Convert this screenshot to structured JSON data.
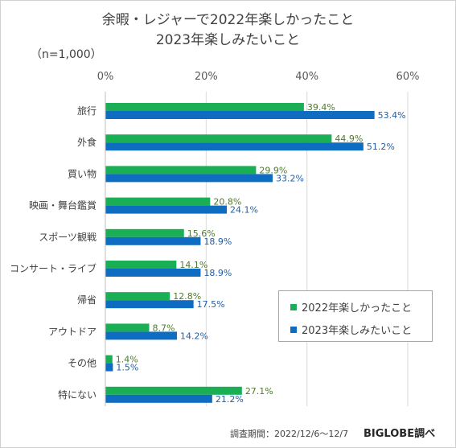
{
  "title": [
    "余暇・レジャーで2022年楽しかったこと",
    "2023年楽しみたいこと"
  ],
  "sample_size": "（n=1,000）",
  "footer": {
    "period": "調査期間：2022/12/6〜12/7",
    "brand": "BIGLOBE調べ"
  },
  "chart_data": {
    "type": "bar",
    "orientation": "horizontal",
    "categories": [
      "旅行",
      "外食",
      "買い物",
      "映画・舞台鑑賞",
      "スポーツ観戦",
      "コンサート・ライブ",
      "帰省",
      "アウトドア",
      "その他",
      "特にない"
    ],
    "series": [
      {
        "name": "2022年楽しかったこと",
        "color": "#1aaf54",
        "label_color": "#4d7a2c",
        "values": [
          39.4,
          44.9,
          29.9,
          20.8,
          15.6,
          14.1,
          12.8,
          8.7,
          1.4,
          27.1
        ]
      },
      {
        "name": "2023年楽しみたいこと",
        "color": "#0f6dc1",
        "label_color": "#1f5fa8",
        "values": [
          53.4,
          51.2,
          33.2,
          24.1,
          18.9,
          18.9,
          17.5,
          14.2,
          1.5,
          21.2
        ]
      }
    ],
    "x_ticks": [
      "0%",
      "20%",
      "40%",
      "60%"
    ],
    "xlim": [
      0,
      60
    ],
    "value_suffix": "%",
    "grid": true,
    "legend_position": "bottom-right"
  }
}
